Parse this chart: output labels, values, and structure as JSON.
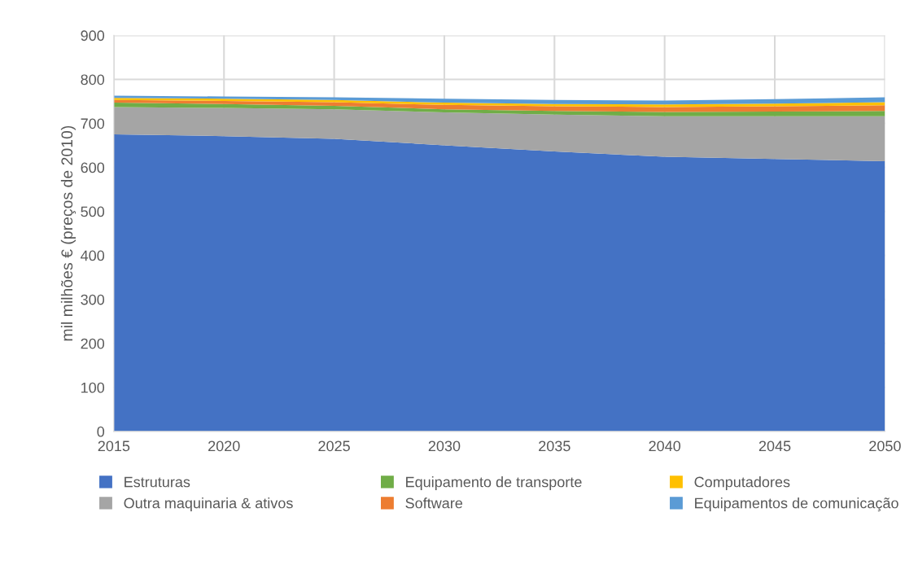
{
  "chart_data": {
    "type": "area",
    "stacked": true,
    "ylabel": "mil milhões € (preços de 2010)",
    "x": [
      2015,
      2020,
      2025,
      2030,
      2035,
      2040,
      2045,
      2050
    ],
    "series": [
      {
        "name": "Estruturas",
        "color": "#4472c4",
        "values": [
          675,
          671,
          665,
          650,
          636,
          624,
          619,
          614
        ]
      },
      {
        "name": "Outra maquinaria & ativos",
        "color": "#a5a5a5",
        "values": [
          62,
          64,
          67,
          75,
          84,
          92,
          97,
          102
        ]
      },
      {
        "name": "Equipamento de transporte",
        "color": "#70ad47",
        "values": [
          10,
          9,
          8,
          7,
          8,
          10,
          11,
          12
        ]
      },
      {
        "name": "Software",
        "color": "#ed7d31",
        "values": [
          6,
          7,
          8,
          10,
          11,
          11,
          12,
          13
        ]
      },
      {
        "name": "Computadores",
        "color": "#ffc000",
        "values": [
          5,
          5,
          5,
          5,
          5,
          6,
          6,
          7
        ]
      },
      {
        "name": "Equipamentos de comunicação",
        "color": "#5b9bd5",
        "values": [
          5,
          5,
          6,
          9,
          9,
          9,
          10,
          11
        ]
      }
    ],
    "xlim": [
      2015,
      2050
    ],
    "xticks": [
      2015,
      2020,
      2025,
      2030,
      2035,
      2040,
      2045,
      2050
    ],
    "ylim": [
      0,
      900
    ],
    "yticks": [
      0,
      100,
      200,
      300,
      400,
      500,
      600,
      700,
      800,
      900
    ],
    "grid": true,
    "legend": "bottom"
  }
}
